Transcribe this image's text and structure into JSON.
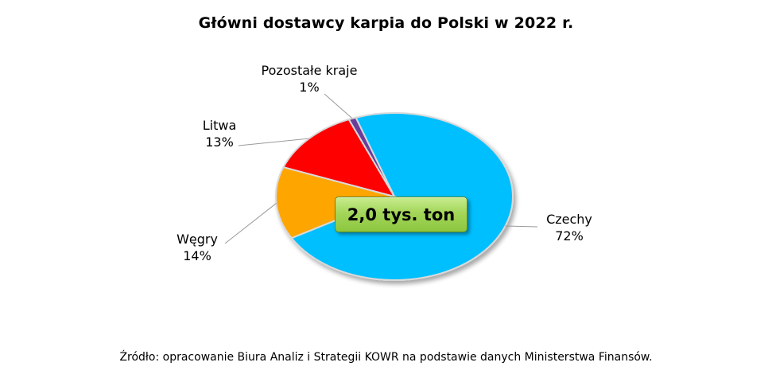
{
  "chart_data": {
    "type": "pie",
    "title": "Główni dostawcy karpia do Polski w 2022 r.",
    "center_label": "2,0 tys. ton",
    "source": "Źródło: opracowanie Biura Analiz i Strategii KOWR na podstawie danych Ministerstwa Finansów.",
    "slices": [
      {
        "name": "Czechy",
        "value": 72,
        "value_label": "72%",
        "color": "#00bfff"
      },
      {
        "name": "Węgry",
        "value": 14,
        "value_label": "14%",
        "color": "#ffa500"
      },
      {
        "name": "Litwa",
        "value": 13,
        "value_label": "13%",
        "color": "#ff0000"
      },
      {
        "name": "Pozostałe kraje",
        "value": 1,
        "value_label": "1%",
        "color": "#6a3d9a"
      }
    ]
  }
}
